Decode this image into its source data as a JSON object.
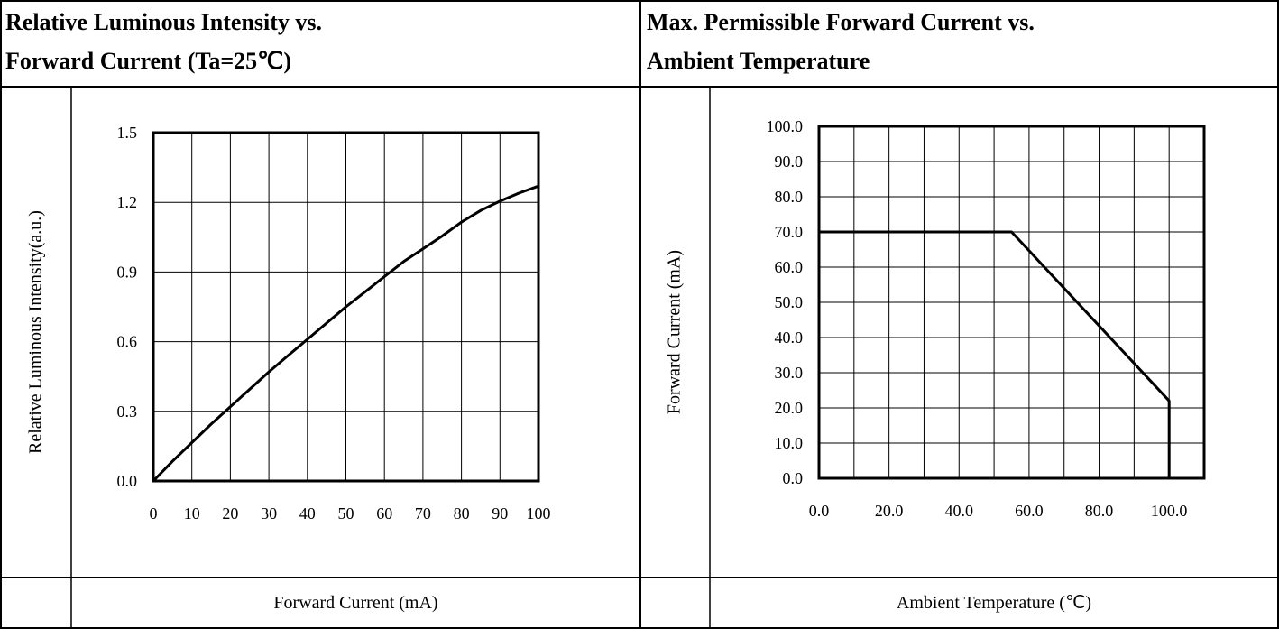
{
  "panels": {
    "left_title_line1": "Relative Luminous Intensity vs.",
    "left_title_line2": "Forward Current (Ta=25℃)",
    "right_title_line1": "Max. Permissible Forward Current vs.",
    "right_title_line2": "Ambient Temperature",
    "left_bottom_label": "Forward Current (mA)",
    "right_bottom_label": "Ambient Temperature (℃)"
  },
  "colors": {
    "line": "#000000",
    "background": "#ffffff"
  },
  "chart_data": [
    {
      "type": "line",
      "title": "Relative Luminous Intensity vs. Forward Current (Ta=25℃)",
      "xlabel": "Forward Current (mA)",
      "ylabel": "Relative Luminous Intensity(a.u.)",
      "xlim": [
        0,
        100
      ],
      "ylim": [
        0,
        1.5
      ],
      "xticks": [
        0,
        10,
        20,
        30,
        40,
        50,
        60,
        70,
        80,
        90,
        100
      ],
      "xtick_labels": [
        "0",
        "10",
        "20",
        "30",
        "40",
        "50",
        "60",
        "70",
        "80",
        "90",
        "100"
      ],
      "yticks": [
        0,
        0.3,
        0.6,
        0.9,
        1.2,
        1.5
      ],
      "ytick_labels": [
        "0.0",
        "0.3",
        "0.6",
        "0.9",
        "1.2",
        "1.5"
      ],
      "grid": true,
      "series": [
        {
          "x": [
            0,
            5,
            10,
            15,
            20,
            25,
            30,
            35,
            40,
            45,
            50,
            55,
            60,
            65,
            70,
            75,
            80,
            85,
            90,
            95,
            100
          ],
          "y": [
            0.0,
            0.085,
            0.165,
            0.245,
            0.32,
            0.395,
            0.47,
            0.54,
            0.61,
            0.68,
            0.75,
            0.815,
            0.88,
            0.945,
            1.0,
            1.055,
            1.115,
            1.165,
            1.205,
            1.24,
            1.27
          ]
        }
      ]
    },
    {
      "type": "line",
      "title": "Max. Permissible Forward Current vs. Ambient Temperature",
      "xlabel": "Ambient Temperature (℃)",
      "ylabel": "Forward Current (mA)",
      "xlim": [
        0,
        110
      ],
      "ylim": [
        0,
        100
      ],
      "xticks": [
        0,
        20,
        40,
        60,
        80,
        100
      ],
      "xtick_labels": [
        "0.0",
        "20.0",
        "40.0",
        "60.0",
        "80.0",
        "100.0"
      ],
      "yticks": [
        0,
        10,
        20,
        30,
        40,
        50,
        60,
        70,
        80,
        90,
        100
      ],
      "ytick_labels": [
        "0.0",
        "10.0",
        "20.0",
        "30.0",
        "40.0",
        "50.0",
        "60.0",
        "70.0",
        "80.0",
        "90.0",
        "100.0"
      ],
      "grid": true,
      "series": [
        {
          "x": [
            0,
            55,
            100,
            100
          ],
          "y": [
            70,
            70,
            22,
            0
          ]
        }
      ]
    }
  ]
}
